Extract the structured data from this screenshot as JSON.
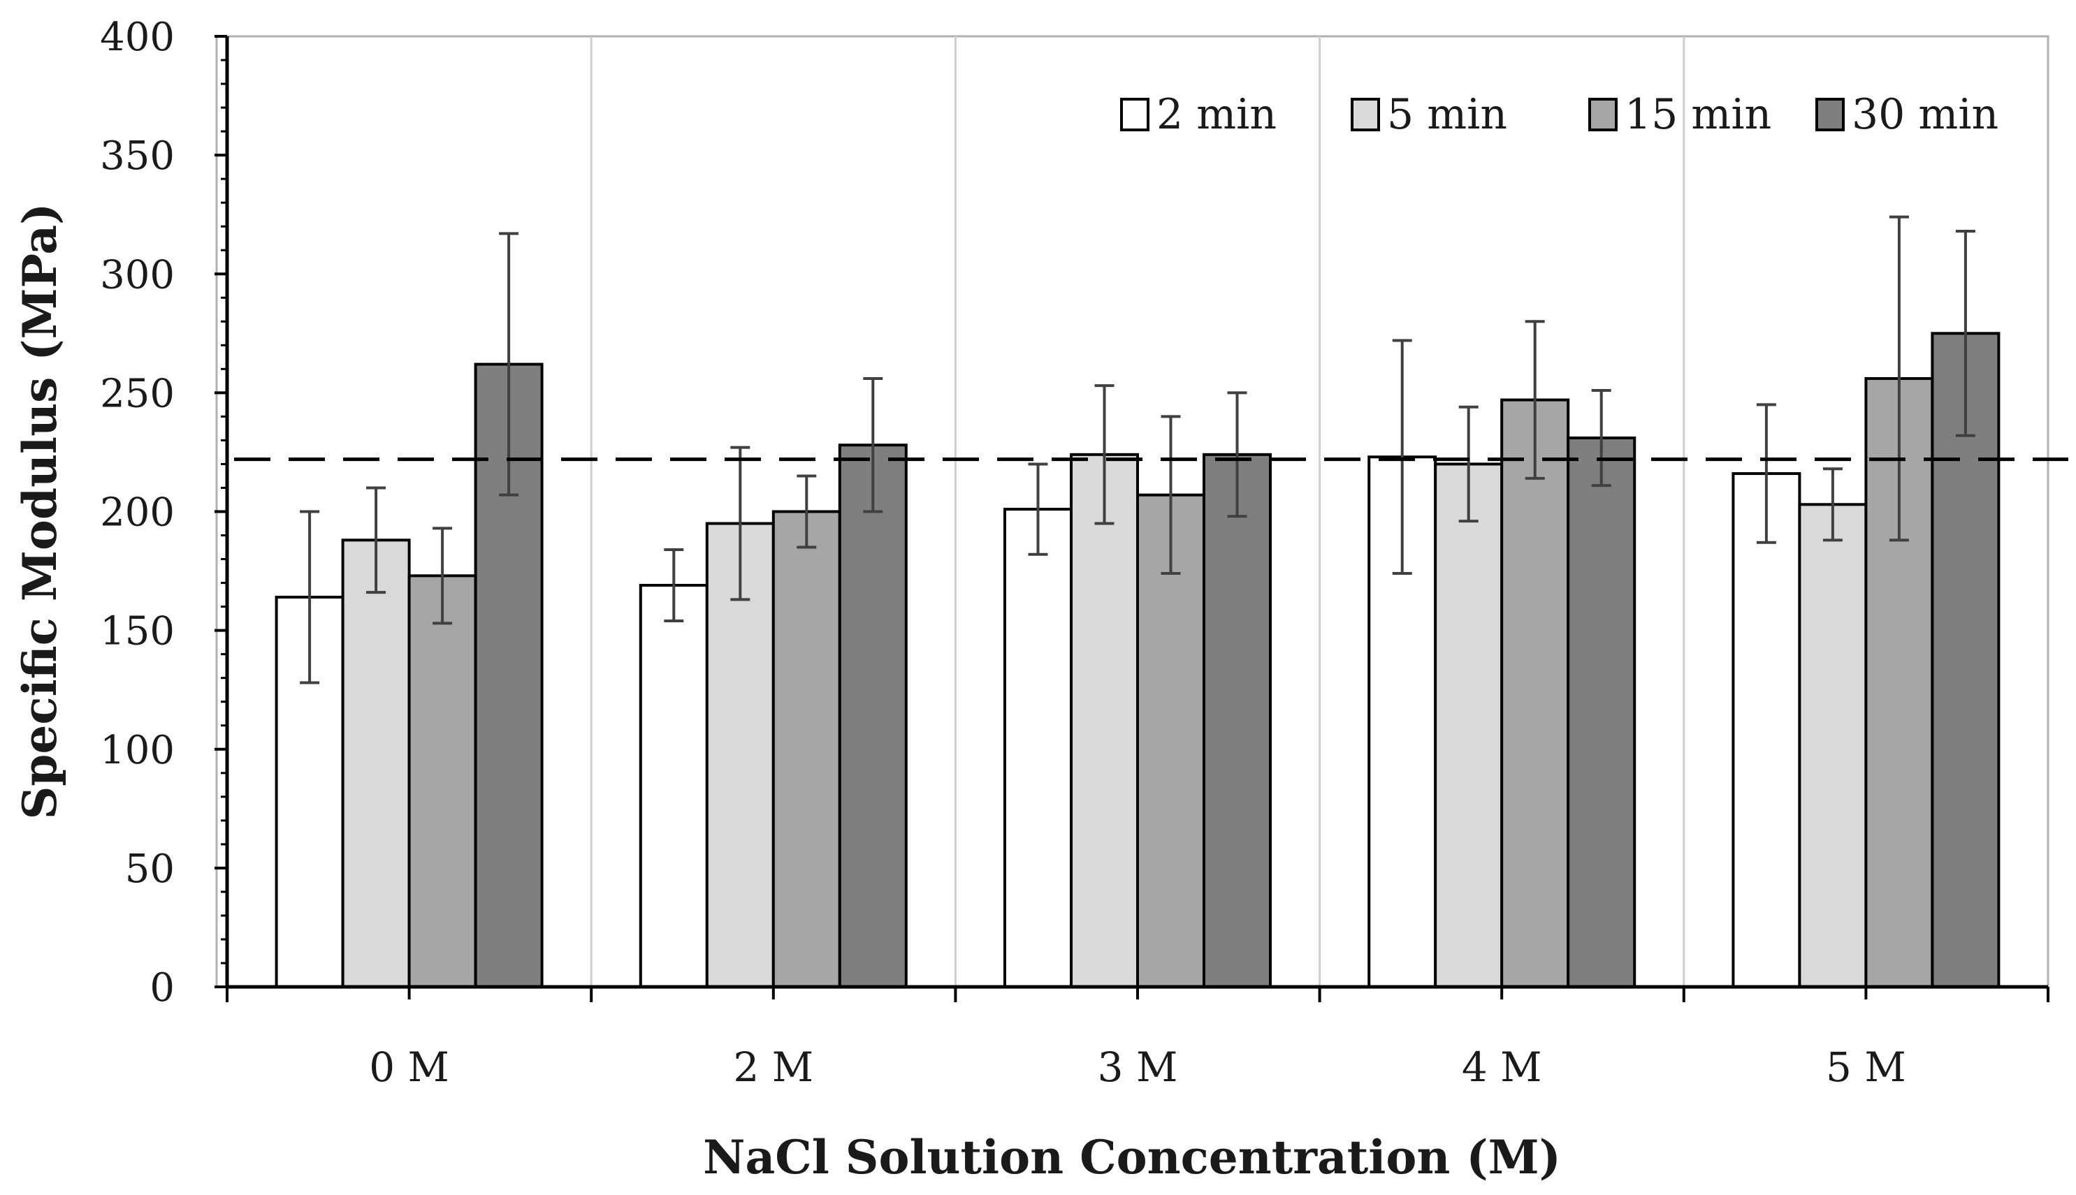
{
  "chart_data": {
    "type": "bar",
    "title": "",
    "xlabel": "NaCl Solution Concentration (M)",
    "ylabel": "Specific Modulus (MPa)",
    "ylim": [
      0,
      400
    ],
    "yticks": [
      0,
      50,
      100,
      150,
      200,
      250,
      300,
      350,
      400
    ],
    "ytick_labels": [
      "0",
      "50",
      "100",
      "150",
      "200",
      "250",
      "300",
      "350",
      "400"
    ],
    "categories": [
      "0 M",
      "2 M",
      "3 M",
      "4 M",
      "5 M"
    ],
    "series": [
      {
        "name": "2 min",
        "color": "#ffffff",
        "values": [
          164,
          169,
          201,
          223,
          216
        ],
        "errors": [
          36,
          15,
          19,
          49,
          29
        ]
      },
      {
        "name": "5 min",
        "color": "#d9d9d9",
        "values": [
          188,
          195,
          224,
          220,
          203
        ],
        "errors": [
          22,
          32,
          29,
          24,
          15
        ]
      },
      {
        "name": "15 min",
        "color": "#a6a6a6",
        "values": [
          173,
          200,
          207,
          247,
          256
        ],
        "errors": [
          20,
          15,
          33,
          33,
          68
        ]
      },
      {
        "name": "30 min",
        "color": "#7f7f7f",
        "values": [
          262,
          228,
          224,
          231,
          275
        ],
        "errors": [
          55,
          28,
          26,
          20,
          43
        ]
      }
    ],
    "reference_line": {
      "value": 222,
      "style": "dashed"
    },
    "legend_position": "top-right",
    "grid": "vertical separators between categories"
  }
}
